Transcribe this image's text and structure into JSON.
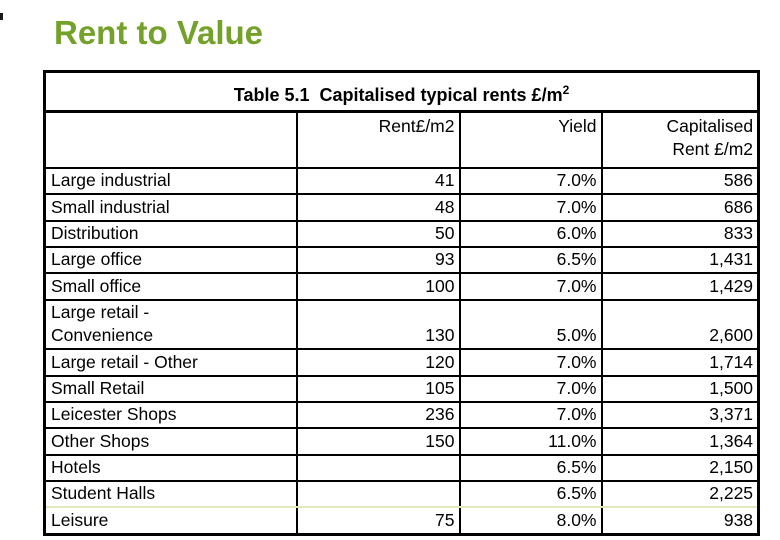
{
  "slide": {
    "heading": "Rent to Value",
    "colors": {
      "heading_green": "#74a12a",
      "divider_light_green": "#dfe9bc",
      "table_border": "#000000",
      "background": "#ffffff"
    }
  },
  "table": {
    "title_prefix": "Table 5.1  Capitalised typical rents £/m",
    "title_sup": "2",
    "header": {
      "label": "",
      "rent": "Rent£/m2",
      "yield": "Yield",
      "capitalised": "Capitalised\nRent £/m2"
    },
    "rows": [
      {
        "label": "Large industrial",
        "rent": "41",
        "yield": "7.0%",
        "capitalised": "586"
      },
      {
        "label": "Small industrial",
        "rent": "48",
        "yield": "7.0%",
        "capitalised": "686"
      },
      {
        "label": "Distribution",
        "rent": "50",
        "yield": "6.0%",
        "capitalised": "833"
      },
      {
        "label": "Large office",
        "rent": "93",
        "yield": "6.5%",
        "capitalised": "1,431"
      },
      {
        "label": "Small office",
        "rent": "100",
        "yield": "7.0%",
        "capitalised": "1,429"
      },
      {
        "label": "Large retail -\nConvenience",
        "rent": "130",
        "yield": "5.0%",
        "capitalised": "2,600"
      },
      {
        "label": "Large retail - Other",
        "rent": "120",
        "yield": "7.0%",
        "capitalised": "1,714"
      },
      {
        "label": "Small Retail",
        "rent": "105",
        "yield": "7.0%",
        "capitalised": "1,500"
      },
      {
        "label": "Leicester Shops",
        "rent": "236",
        "yield": "7.0%",
        "capitalised": "3,371"
      },
      {
        "label": "Other Shops",
        "rent": "150",
        "yield": "11.0%",
        "capitalised": "1,364"
      },
      {
        "label": "Hotels",
        "rent": "",
        "yield": "6.5%",
        "capitalised": "2,150"
      },
      {
        "label": "Student Halls",
        "rent": "",
        "yield": "6.5%",
        "capitalised": "2,225",
        "divider_below": "light-green"
      },
      {
        "label": "Leisure",
        "rent": "75",
        "yield": "8.0%",
        "capitalised": "938"
      }
    ]
  }
}
